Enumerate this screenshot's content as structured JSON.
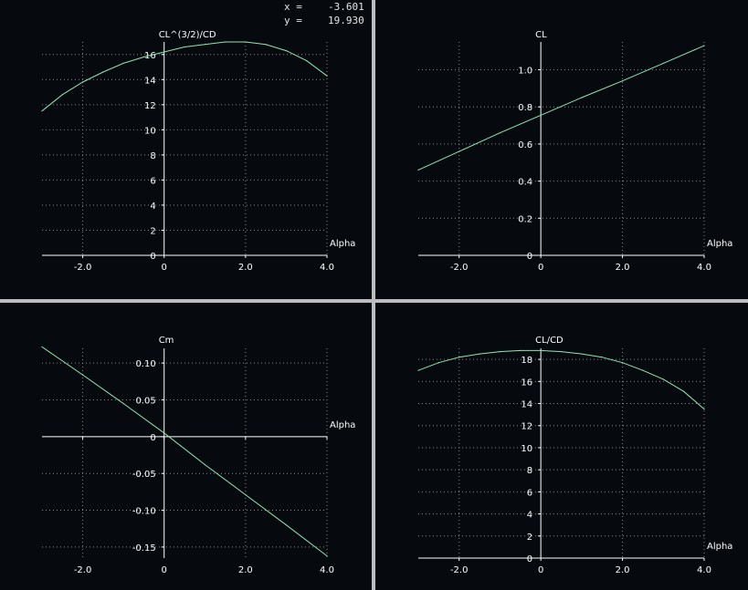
{
  "readout": {
    "x_label": "x =",
    "x_value": "-3.601",
    "y_label": "y =",
    "y_value": "19.930"
  },
  "colors": {
    "background": "#060a0f",
    "curve": "#8ee6b4",
    "grid": "#8a8a8a",
    "axis": "#ffffff",
    "text": "#ffffff",
    "divider": "#bdbdbd"
  },
  "chart_data": [
    {
      "type": "line",
      "title": "CL^(3/2)/CD",
      "xlabel": "Alpha",
      "ylabel": "CL^(3/2)/CD",
      "xlim": [
        -3,
        4
      ],
      "ylim": [
        0,
        17
      ],
      "xticks": [
        -2,
        0,
        2,
        4
      ],
      "xtick_labels": [
        "-2.0",
        "0",
        "2.0",
        "4.0"
      ],
      "yticks": [
        0,
        2,
        4,
        6,
        8,
        10,
        12,
        14,
        16
      ],
      "ytick_labels": [
        "0",
        "2",
        "4",
        "6",
        "8",
        "10",
        "12",
        "14",
        "16"
      ],
      "grid": true,
      "series": [
        {
          "x": [
            -3,
            -2.5,
            -2,
            -1.5,
            -1,
            -0.5,
            0,
            0.5,
            1,
            1.5,
            2,
            2.5,
            3,
            3.5,
            4
          ],
          "values": [
            11.5,
            12.8,
            13.8,
            14.6,
            15.3,
            15.8,
            16.2,
            16.6,
            16.8,
            17.0,
            17.0,
            16.8,
            16.3,
            15.5,
            14.3
          ]
        }
      ]
    },
    {
      "type": "line",
      "title": "CL",
      "xlabel": "Alpha",
      "ylabel": "CL",
      "xlim": [
        -3,
        4
      ],
      "ylim": [
        0,
        1.15
      ],
      "xticks": [
        -2,
        0,
        2,
        4
      ],
      "xtick_labels": [
        "-2.0",
        "0",
        "2.0",
        "4.0"
      ],
      "yticks": [
        0,
        0.2,
        0.4,
        0.6,
        0.8,
        1.0
      ],
      "ytick_labels": [
        "0",
        "0.2",
        "0.4",
        "0.6",
        "0.8",
        "1.0"
      ],
      "grid": true,
      "series": [
        {
          "x": [
            -3,
            -2,
            -1,
            0,
            1,
            2,
            3,
            4
          ],
          "values": [
            0.46,
            0.56,
            0.66,
            0.755,
            0.85,
            0.94,
            1.035,
            1.13
          ]
        }
      ]
    },
    {
      "type": "line",
      "title": "Cm",
      "xlabel": "Alpha",
      "ylabel": "Cm",
      "xlim": [
        -3,
        4
      ],
      "ylim": [
        -0.165,
        0.12
      ],
      "xticks": [
        -2,
        0,
        2,
        4
      ],
      "xtick_labels": [
        "-2.0",
        "0",
        "2.0",
        "4.0"
      ],
      "yticks": [
        -0.15,
        -0.1,
        -0.05,
        0,
        0.05,
        0.1
      ],
      "ytick_labels": [
        "-0.15",
        "-0.10",
        "-0.05",
        "0",
        "0.05",
        "0.10"
      ],
      "grid": true,
      "series": [
        {
          "x": [
            -3,
            -2,
            -1,
            0,
            1,
            2,
            3,
            4
          ],
          "values": [
            0.122,
            0.084,
            0.045,
            0.005,
            -0.038,
            -0.079,
            -0.12,
            -0.162
          ]
        }
      ]
    },
    {
      "type": "line",
      "title": "CL/CD",
      "xlabel": "Alpha",
      "ylabel": "CL/CD",
      "xlim": [
        -3,
        4
      ],
      "ylim": [
        0,
        19
      ],
      "xticks": [
        -2,
        0,
        2,
        4
      ],
      "xtick_labels": [
        "-2.0",
        "0",
        "2.0",
        "4.0"
      ],
      "yticks": [
        0,
        2,
        4,
        6,
        8,
        10,
        12,
        14,
        16,
        18
      ],
      "ytick_labels": [
        "0",
        "2",
        "4",
        "6",
        "8",
        "10",
        "12",
        "14",
        "16",
        "18"
      ],
      "grid": true,
      "series": [
        {
          "x": [
            -3,
            -2.5,
            -2,
            -1.5,
            -1,
            -0.5,
            0,
            0.5,
            1,
            1.5,
            2,
            2.5,
            3,
            3.5,
            4
          ],
          "values": [
            17.0,
            17.7,
            18.2,
            18.5,
            18.7,
            18.8,
            18.8,
            18.7,
            18.5,
            18.2,
            17.7,
            17.0,
            16.2,
            15.1,
            13.5
          ]
        }
      ]
    }
  ]
}
